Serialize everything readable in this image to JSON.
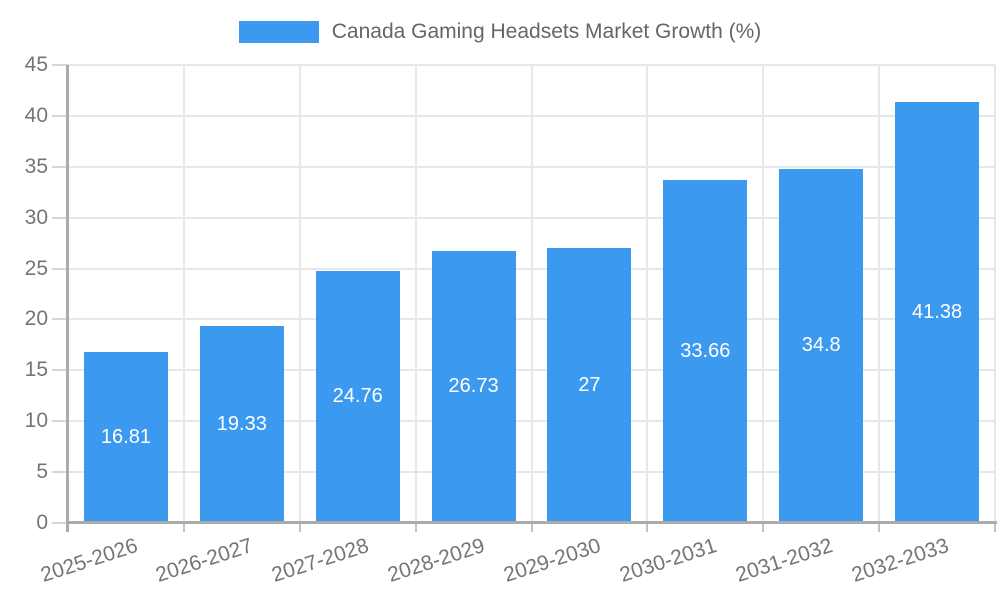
{
  "chart_data": {
    "type": "bar",
    "series_label": "Canada Gaming Headsets Market Growth (%)",
    "categories": [
      "2025-2026",
      "2026-2027",
      "2027-2028",
      "2028-2029",
      "2029-2030",
      "2030-2031",
      "2031-2032",
      "2032-2033"
    ],
    "values": [
      16.81,
      19.33,
      24.76,
      26.73,
      27,
      33.66,
      34.8,
      41.38
    ],
    "value_labels": [
      "16.81",
      "19.33",
      "24.76",
      "26.73",
      "27",
      "33.66",
      "34.8",
      "41.38"
    ],
    "xlabel": "",
    "ylabel": "",
    "ylim": [
      0,
      45
    ],
    "y_ticks": [
      0,
      5,
      10,
      15,
      20,
      25,
      30,
      35,
      40,
      45
    ],
    "grid": true,
    "legend_position": "top",
    "bar_color": "#3b9af0",
    "value_label_color": "#ffffff",
    "axis_label_color": "#757575",
    "legend_text_color": "#666666",
    "grid_color": "#e7e7e7",
    "tick_color": "#d6d6d6",
    "x_tick_color": "#c2c2c2",
    "axis_line_color": "#ababab",
    "background_color": "#ffffff"
  }
}
